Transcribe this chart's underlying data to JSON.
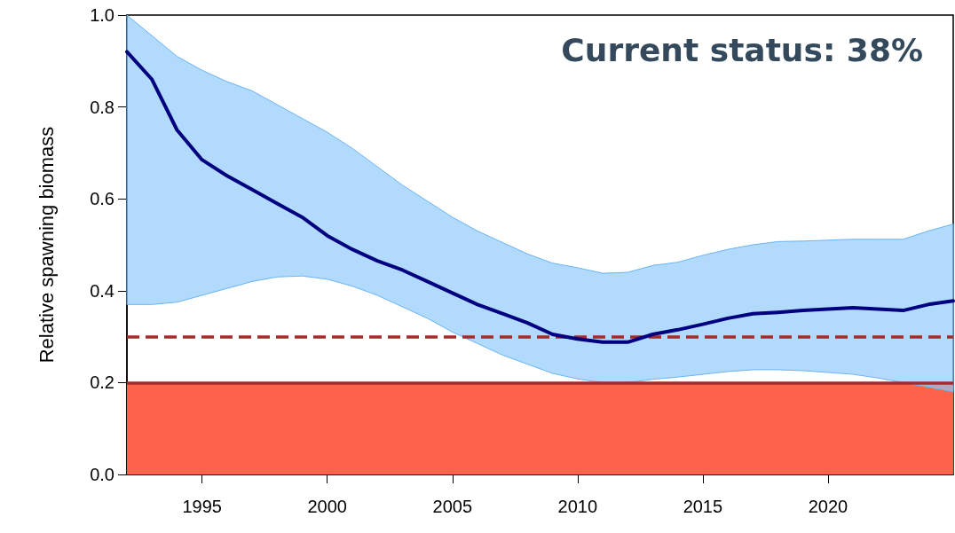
{
  "chart_data": {
    "type": "line",
    "ylabel": "Relative spawning biomass",
    "annotations": [
      "Current status: 38%"
    ],
    "x": [
      1992,
      1993,
      1994,
      1995,
      1996,
      1997,
      1998,
      1999,
      2000,
      2001,
      2002,
      2003,
      2004,
      2005,
      2006,
      2007,
      2008,
      2009,
      2010,
      2011,
      2012,
      2013,
      2014,
      2015,
      2016,
      2017,
      2018,
      2019,
      2020,
      2021,
      2022,
      2023,
      2024,
      2025
    ],
    "series": [
      {
        "color": "#000080",
        "values": [
          0.92,
          0.86,
          0.75,
          0.685,
          0.65,
          0.62,
          0.59,
          0.56,
          0.52,
          0.49,
          0.465,
          0.445,
          0.42,
          0.395,
          0.37,
          0.35,
          0.33,
          0.305,
          0.295,
          0.288,
          0.288,
          0.305,
          0.315,
          0.327,
          0.34,
          0.35,
          0.353,
          0.357,
          0.36,
          0.363,
          0.36,
          0.357,
          0.37,
          0.378
        ],
        "upper": [
          1.0,
          0.955,
          0.91,
          0.88,
          0.855,
          0.835,
          0.805,
          0.775,
          0.745,
          0.71,
          0.67,
          0.63,
          0.595,
          0.56,
          0.53,
          0.505,
          0.48,
          0.46,
          0.45,
          0.438,
          0.44,
          0.455,
          0.462,
          0.477,
          0.49,
          0.5,
          0.507,
          0.508,
          0.51,
          0.512,
          0.512,
          0.512,
          0.53,
          0.545
        ],
        "lower": [
          0.37,
          0.37,
          0.375,
          0.39,
          0.405,
          0.42,
          0.43,
          0.432,
          0.425,
          0.41,
          0.39,
          0.365,
          0.34,
          0.31,
          0.285,
          0.26,
          0.24,
          0.22,
          0.208,
          0.2,
          0.2,
          0.207,
          0.212,
          0.218,
          0.224,
          0.228,
          0.228,
          0.226,
          0.222,
          0.218,
          0.21,
          0.2,
          0.19,
          0.18
        ]
      }
    ],
    "bands": [
      {
        "axis": "y",
        "from": 0,
        "to": 0.2,
        "color": "#fd634a"
      }
    ],
    "ref_lines": [
      {
        "axis": "y",
        "value": 0.2,
        "color": "#a52a2a",
        "line_style": "solid"
      },
      {
        "axis": "y",
        "value": 0.3,
        "color": "#a52a2a",
        "line_style": "dashed"
      }
    ],
    "xlim": [
      1992,
      2025
    ],
    "xticks": [
      1995,
      2000,
      2005,
      2010,
      2015,
      2020
    ],
    "ylim": [
      0,
      1
    ],
    "yticks": [
      {
        "value": 0,
        "label": "0.0"
      },
      0.2,
      0.4,
      0.6,
      0.8,
      {
        "value": 1,
        "label": "1.0"
      }
    ],
    "grid": false,
    "marker": "none",
    "line_style": "solid"
  }
}
